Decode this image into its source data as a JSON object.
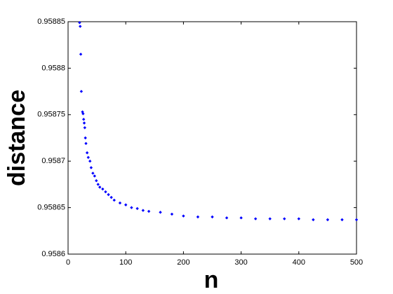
{
  "chart_data": {
    "type": "scatter",
    "x_label": "n",
    "y_label": "distance",
    "color": "#0000ff",
    "x": [
      20,
      21,
      22,
      23,
      25,
      26,
      27,
      28,
      29,
      30,
      31,
      33,
      35,
      38,
      40,
      43,
      46,
      49,
      52,
      55,
      60,
      65,
      70,
      75,
      80,
      90,
      100,
      110,
      120,
      130,
      140,
      160,
      180,
      200,
      225,
      250,
      275,
      300,
      325,
      350,
      375,
      400,
      425,
      450,
      475,
      500
    ],
    "y": [
      0.958849,
      0.958845,
      0.958815,
      0.958775,
      0.958753,
      0.958751,
      0.958745,
      0.958741,
      0.958736,
      0.958725,
      0.958719,
      0.958709,
      0.958704,
      0.9587,
      0.958693,
      0.958687,
      0.958684,
      0.958679,
      0.958675,
      0.958672,
      0.95867,
      0.958667,
      0.958664,
      0.958661,
      0.958658,
      0.958655,
      0.958653,
      0.95865,
      0.958649,
      0.958647,
      0.958646,
      0.958645,
      0.958643,
      0.958641,
      0.95864,
      0.95864,
      0.958639,
      0.958639,
      0.958638,
      0.958638,
      0.958638,
      0.958638,
      0.958637,
      0.958637,
      0.958637,
      0.958637
    ],
    "xlim": [
      0,
      500
    ],
    "xticks": [
      0,
      100,
      200,
      300,
      400,
      500
    ],
    "ylim": [
      0.9586,
      0.95885
    ],
    "yticks": [
      0.9586,
      0.95865,
      0.9587,
      0.95875,
      0.9588,
      0.95885
    ]
  }
}
